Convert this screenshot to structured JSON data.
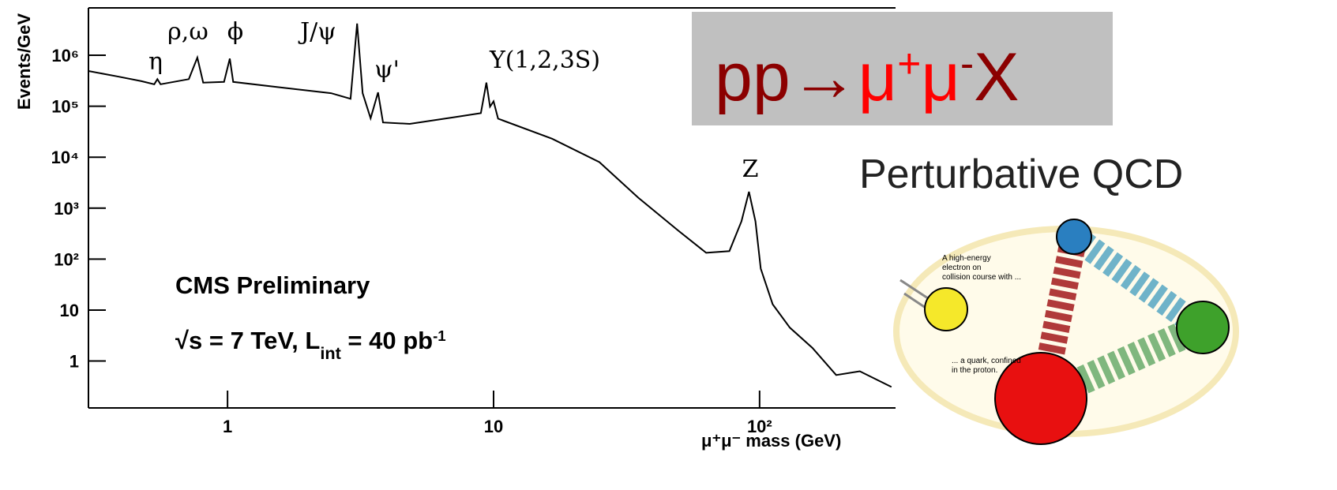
{
  "chart_data": {
    "type": "line",
    "y_label": "Events/GeV",
    "x_label": "μ⁺μ⁻ mass (GeV)",
    "x": [
      0.3,
      0.39,
      0.475,
      0.53,
      0.545,
      0.56,
      0.715,
      0.77,
      0.81,
      0.97,
      1.02,
      1.05,
      1.52,
      2.45,
      2.9,
      3.07,
      3.22,
      3.45,
      3.68,
      3.84,
      4.84,
      7.3,
      8.96,
      9.4,
      9.7,
      10.0,
      10.4,
      16.6,
      25,
      35,
      49.5,
      63,
      77,
      85.5,
      91.2,
      96.5,
      101,
      112,
      130,
      158,
      194,
      238,
      313
    ],
    "values": [
      490000,
      380000,
      310000,
      270000,
      340000,
      270000,
      340000,
      900000,
      290000,
      300000,
      860000,
      300000,
      240000,
      180000,
      140000,
      4200000,
      180000,
      58000,
      187000,
      48000,
      45000,
      62000,
      73000,
      290000,
      98000,
      125000,
      57000,
      23000,
      8000,
      1600,
      360,
      133,
      143,
      550,
      2100,
      550,
      65,
      13,
      4.5,
      1.8,
      0.53,
      0.63,
      0.31
    ],
    "color": "#000000",
    "log_x": true,
    "log_y": true,
    "xlim": [
      0.3,
      320
    ],
    "ylim": [
      0.12,
      8500000
    ],
    "xticks": [
      1,
      10,
      {
        "value": 100,
        "label": "10²"
      }
    ],
    "yticks": [
      1,
      10,
      {
        "value": 100,
        "label": "10²"
      },
      {
        "value": 1000,
        "label": "10³"
      },
      {
        "value": 10000,
        "label": "10⁴"
      },
      {
        "value": 100000,
        "label": "10⁵"
      },
      {
        "value": 1000000,
        "label": "10⁶"
      }
    ],
    "annotations": [
      "η",
      "ρ,ω",
      "ϕ",
      "J/ψ",
      "ψ'",
      "Υ(1,2,3S)",
      "Z"
    ],
    "experiment_label": "CMS Preliminary",
    "lumi_label": [
      {
        "text": "√s = 7 TeV,  L"
      },
      {
        "text": "int",
        "subscript": true
      },
      {
        "text": " = 40 pb"
      },
      {
        "text": "-1",
        "superscript": true
      }
    ]
  },
  "slide": {
    "reaction": [
      {
        "text": "pp→",
        "color": "#8b0000"
      },
      {
        "text": "μ",
        "color": "#ff0000"
      },
      {
        "text": "+",
        "color": "#ff0000",
        "superscript": true
      },
      {
        "text": "μ",
        "color": "#ff0000"
      },
      {
        "text": "-",
        "color": "#8b0000",
        "superscript": true
      },
      {
        "text": "X",
        "color": "#8b0000"
      }
    ],
    "subtitle": "Perturbative QCD",
    "cartoon_caption_1": [
      "A high-energy",
      "electron on",
      "collision course with ..."
    ],
    "cartoon_caption_2": [
      "... a quark, confined",
      "in the proton."
    ]
  }
}
